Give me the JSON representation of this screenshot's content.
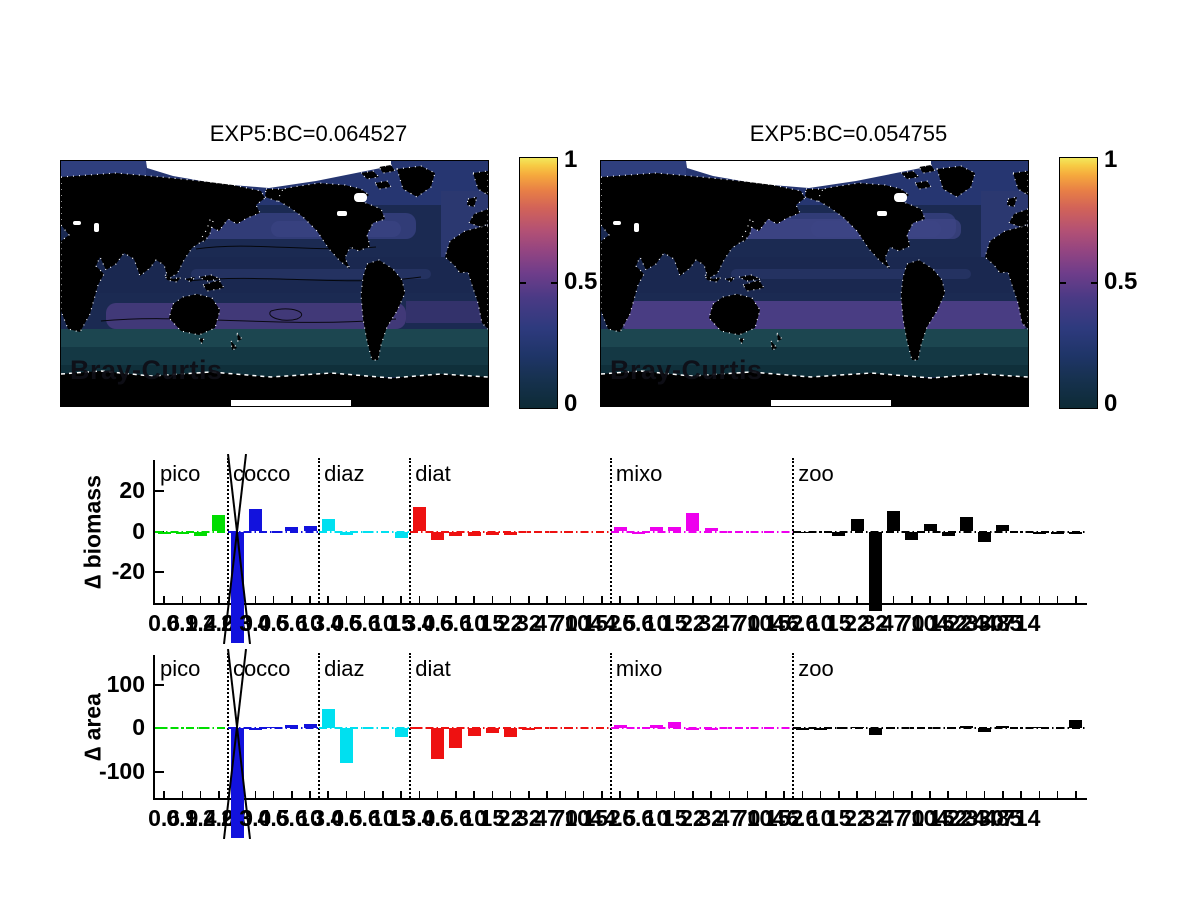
{
  "colorbar": {
    "tick_top": "1",
    "tick_mid": "0.5",
    "tick_bottom": "0"
  },
  "plankton_groups": [
    {
      "name": "pico",
      "color": "#00dd00",
      "size_labels": [
        "0.6",
        "0.9",
        "1.4",
        "2.0"
      ]
    },
    {
      "name": "cocco",
      "color": "#1212dd",
      "size_labels": [
        "2.0",
        "3.0",
        "4.5",
        "6.6",
        "10"
      ],
      "offscale_bar_index": 0
    },
    {
      "name": "diaz",
      "color": "#00e0f0",
      "size_labels": [
        "3.0",
        "4.5",
        "6.6",
        "10",
        "15"
      ]
    },
    {
      "name": "diat",
      "color": "#ee1111",
      "size_labels": [
        "3.0",
        "4.5",
        "6.6",
        "10",
        "15",
        "22",
        "32",
        "47",
        "70",
        "104",
        "152"
      ]
    },
    {
      "name": "mixo",
      "color": "#ee00ee",
      "size_labels": [
        "4.5",
        "6.6",
        "10",
        "15",
        "22",
        "32",
        "47",
        "70",
        "104",
        "152"
      ]
    },
    {
      "name": "zoo",
      "color": "#000000",
      "size_labels": [
        "6.6",
        "10",
        "15",
        "22",
        "32",
        "47",
        "70",
        "104",
        "152",
        "224",
        "330",
        "485",
        "714",
        "",
        "",
        ""
      ]
    }
  ],
  "chart_data": [
    {
      "type": "heatmap",
      "title": "EXP5:BC=0.064527",
      "annotation": "Bray-Curtis",
      "colorbar_range": [
        0,
        1
      ],
      "has_contour_lines": true,
      "description": "Bray-Curtis dissimilarity map, Pacific-centered, dark ocean near 0"
    },
    {
      "type": "heatmap",
      "title": "EXP5:BC=0.054755",
      "annotation": "Bray-Curtis",
      "colorbar_range": [
        0,
        1
      ],
      "has_contour_lines": false,
      "description": "Bray-Curtis dissimilarity map, Pacific-centered, dark ocean near 0"
    },
    {
      "type": "bar",
      "id": "delta_biomass",
      "ylabel": "∆ biomass",
      "yticks": [
        "20",
        "0",
        "-20"
      ],
      "ylim": [
        -35,
        35
      ],
      "values": {
        "pico": [
          -1,
          -1.2,
          -2,
          8
        ],
        "cocco": [
          -120,
          11,
          0.4,
          2,
          2.5
        ],
        "diaz": [
          6,
          -1.5,
          0.4,
          0.3,
          -3
        ],
        "diat": [
          12,
          -4,
          -2.2,
          -2,
          -1.8,
          -1.5,
          0.3,
          0.3,
          0.3,
          0.3,
          0.3
        ],
        "mixo": [
          2,
          -1,
          2,
          2.2,
          9,
          1.8,
          0.3,
          0.3,
          0.3,
          0.3
        ],
        "zoo": [
          -0.8,
          0.15,
          -2,
          6,
          -120,
          10,
          -4,
          3.5,
          -2,
          7,
          -5,
          3,
          0.2,
          -1,
          -1,
          -1
        ]
      }
    },
    {
      "type": "bar",
      "id": "delta_area",
      "ylabel": "∆ area",
      "yticks": [
        "100",
        "0",
        "-100"
      ],
      "ylim": [
        -160,
        168
      ],
      "values": {
        "pico": [
          1,
          1,
          1,
          1
        ],
        "cocco": [
          -700,
          -4,
          4,
          7,
          10
        ],
        "diaz": [
          45,
          -80,
          1,
          1,
          -20
        ],
        "diat": [
          1,
          -70,
          -45,
          -18,
          -12,
          -20,
          -5,
          1,
          1,
          1,
          1
        ],
        "mixo": [
          8,
          1,
          8,
          15,
          -5,
          -3,
          1,
          1,
          1,
          1
        ],
        "zoo": [
          -3,
          -4,
          0.5,
          4,
          -16,
          0.5,
          0.5,
          2,
          0.5,
          5,
          -9,
          6,
          0.5,
          3,
          0.5,
          20
        ]
      }
    }
  ]
}
